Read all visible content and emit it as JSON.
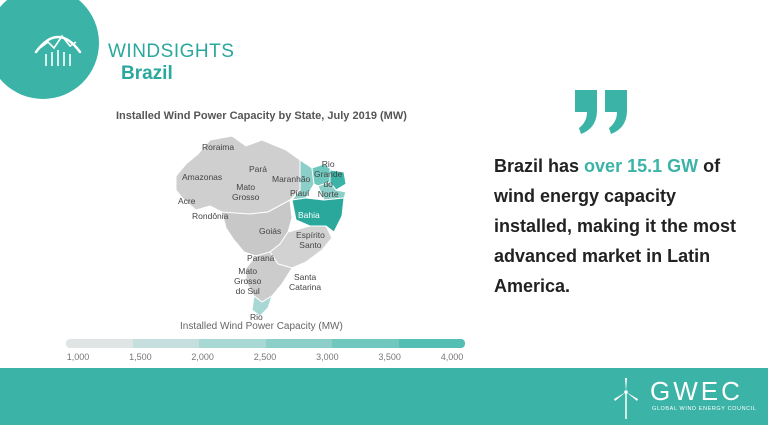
{
  "brand": {
    "name": "WINDSIGHTS",
    "country": "Brazil"
  },
  "map": {
    "title": "Installed Wind Power Capacity by State, July 2019 (MW)",
    "legend_title": "Installed Wind Power Capacity (MW)",
    "legend_ticks": [
      "1,000",
      "1,500",
      "2,000",
      "2,500",
      "3,000",
      "3,500",
      "4,000"
    ],
    "legend_colors": [
      "#dfe4e4",
      "#c4dfdd",
      "#a8d8d3",
      "#8ccfc8",
      "#6fc7be",
      "#52beb4"
    ],
    "base_color": "#cfcfcf",
    "highlight_colors": {
      "Bahia": "#2aa89c",
      "Rio Grande do Norte": "#3bb3a6",
      "Piauí": "#8ccfc8",
      "Ceará": "#6fc7be",
      "Rio Grande do Sul": "#a8d8d3"
    },
    "labels": {
      "roraima": "Roraima",
      "para": "Pará",
      "amazonas": "Amazonas",
      "acre": "Acre",
      "mato_grosso": "Mato\nGrosso",
      "rondonia": "Rondônia",
      "maranhao": "Maranhão",
      "piaui": "Piauí",
      "rgn": "Rio\nGrande\ndo\nNorte",
      "bahia": "Bahia",
      "goias": "Goiás",
      "espirito_santo": "Espírito\nSanto",
      "parana": "Paraná",
      "mato_grosso_do_sul": "Mato\nGrosso\ndo Sul",
      "santa_catarina": "Santa\nCatarina",
      "rio": "Rio"
    }
  },
  "quote": {
    "part1": "Brazil has ",
    "highlight": "over 15.1 GW",
    "part2": " of wind energy capacity installed, making it the most advanced market in Latin America."
  },
  "footer": {
    "logo": "GWEC",
    "subtitle": "GLOBAL WIND ENERGY COUNCIL"
  }
}
